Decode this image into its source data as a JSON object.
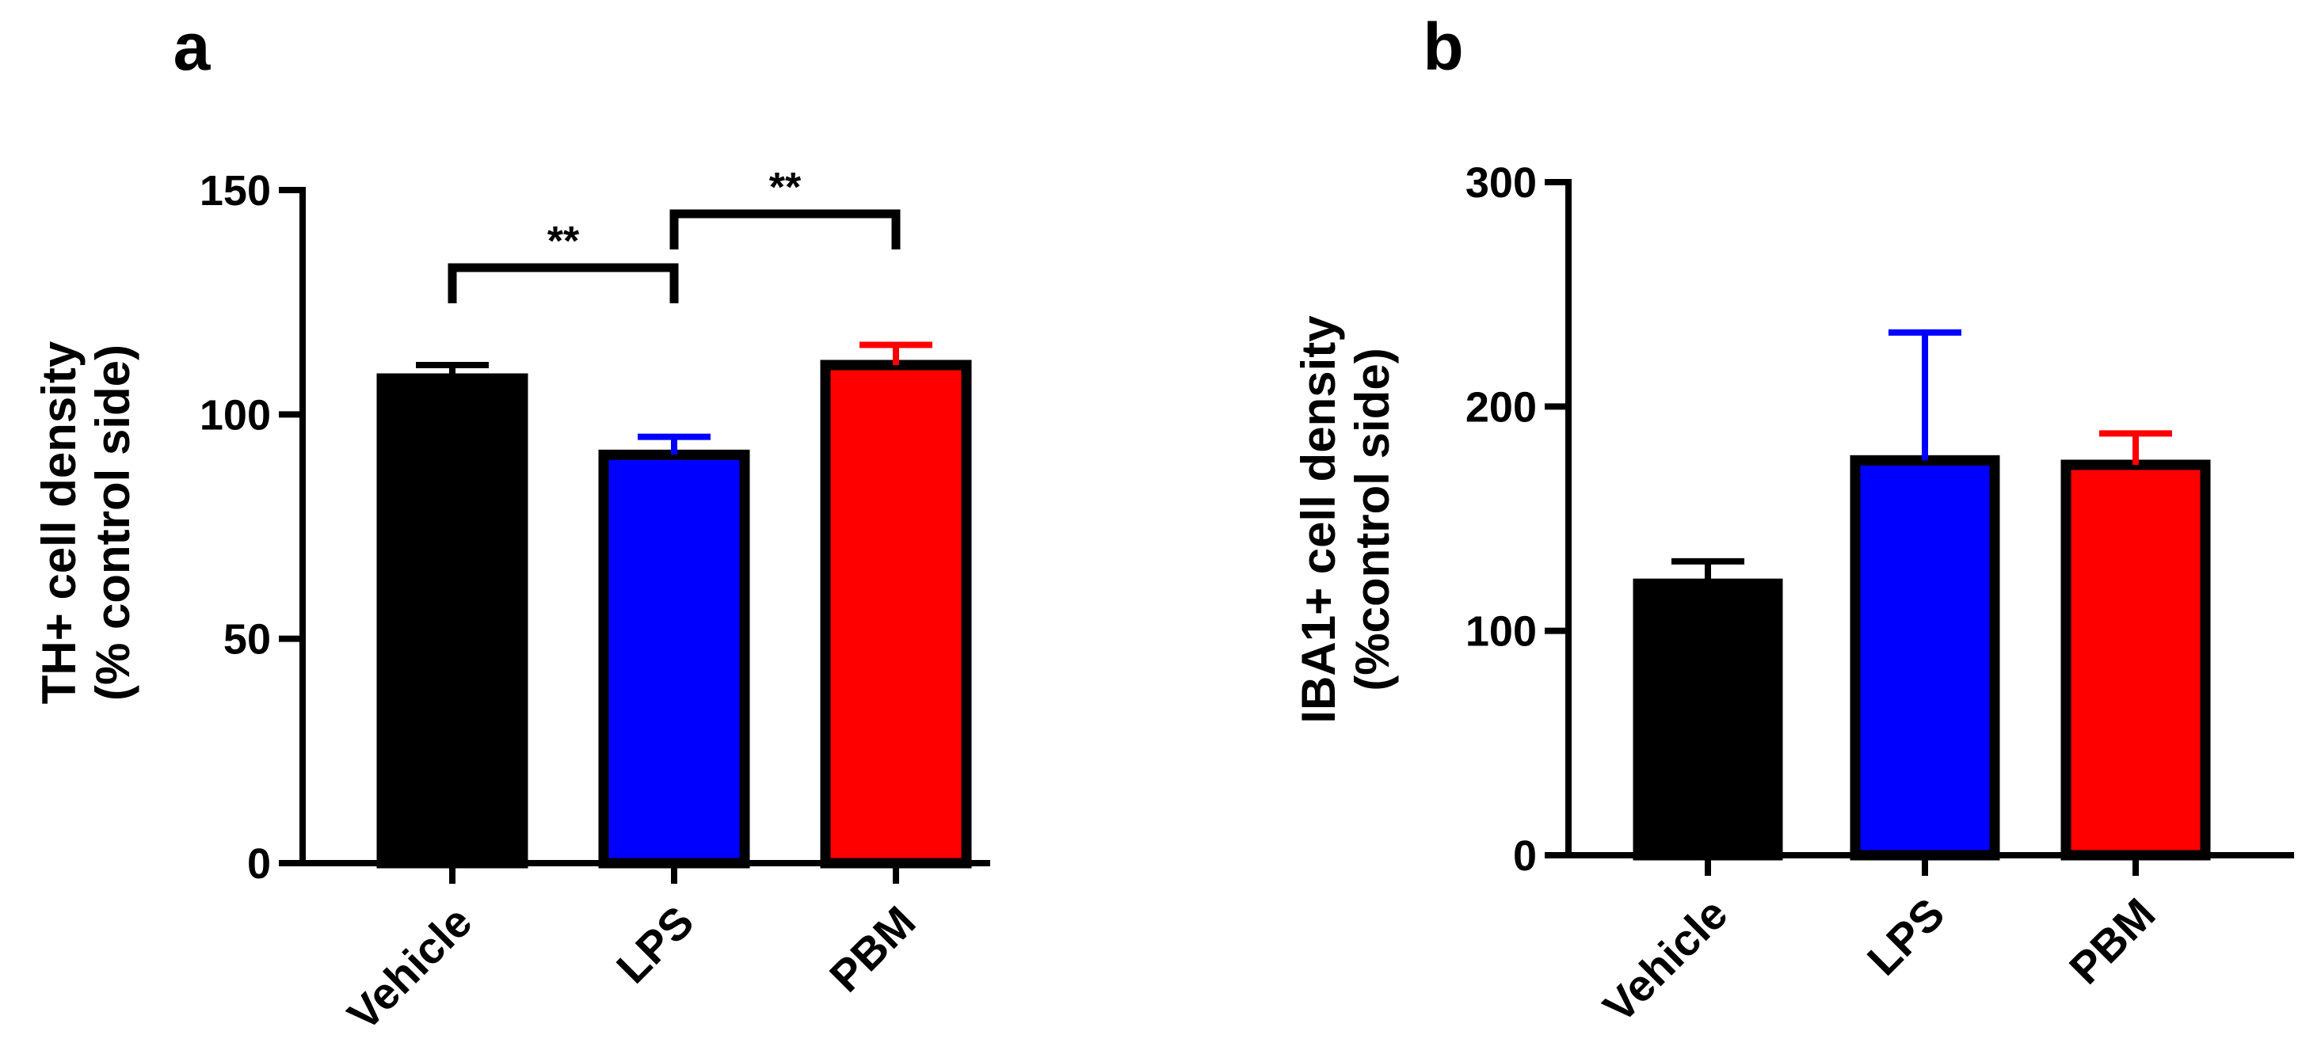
{
  "chart_data": [
    {
      "panel": "a",
      "type": "bar",
      "categories": [
        "Vehicle",
        "LPS",
        "PBM"
      ],
      "values": [
        108,
        91,
        111
      ],
      "errors": [
        3,
        4,
        4.5
      ],
      "colors": [
        "#000000",
        "#0000ff",
        "#ff0000"
      ],
      "ylabel_lines": [
        "TH+ cell density",
        "(% control side)"
      ],
      "yticks": [
        0,
        50,
        100,
        150
      ],
      "ylim": [
        0,
        150
      ],
      "significance": [
        {
          "from": 0,
          "to": 1,
          "label": "**"
        },
        {
          "from": 1,
          "to": 2,
          "label": "**"
        }
      ]
    },
    {
      "panel": "b",
      "type": "bar",
      "categories": [
        "Vehicle",
        "LPS",
        "PBM"
      ],
      "values": [
        121,
        176,
        174
      ],
      "errors": [
        10,
        57,
        14
      ],
      "colors": [
        "#000000",
        "#0000ff",
        "#ff0000"
      ],
      "ylabel_lines": [
        "IBA1+ cell density",
        "(%control side)"
      ],
      "yticks": [
        0,
        100,
        200,
        300
      ],
      "ylim": [
        0,
        300
      ],
      "significance": []
    }
  ]
}
